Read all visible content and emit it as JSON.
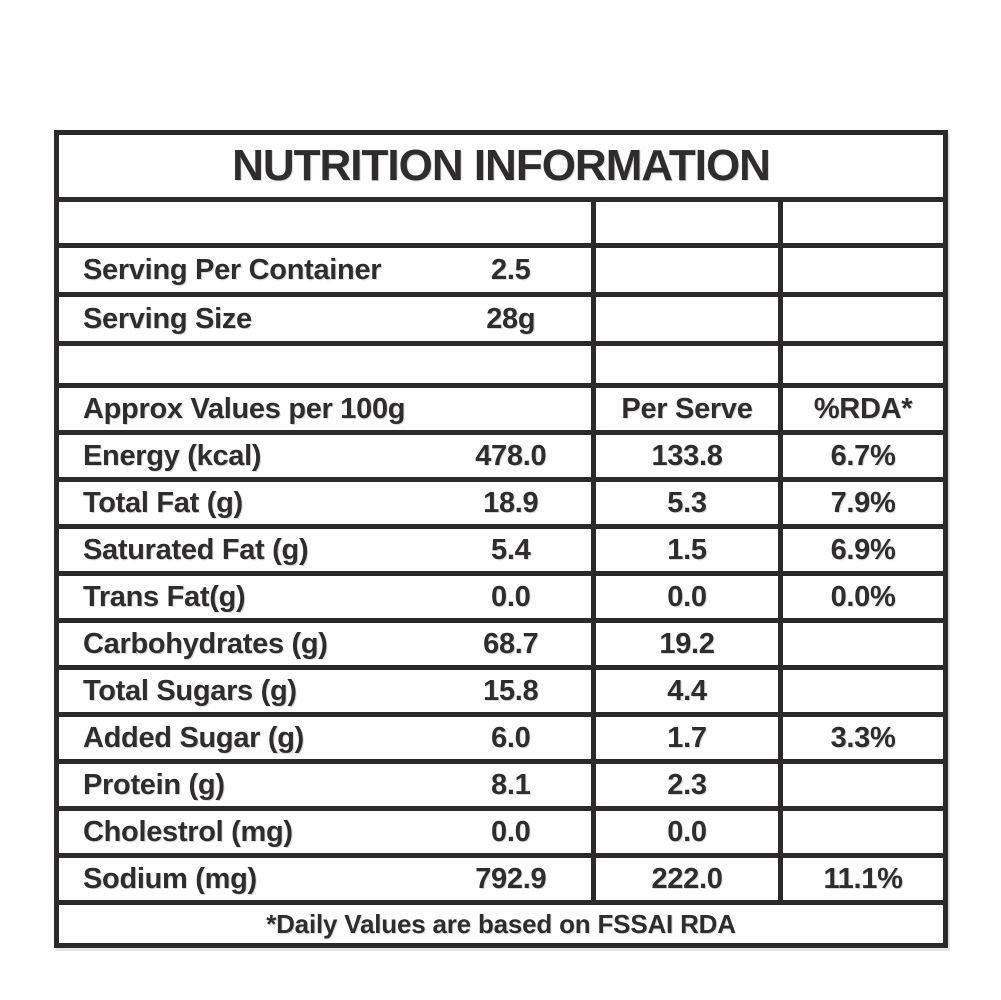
{
  "title": "NUTRITION INFORMATION",
  "serving": {
    "per_container": {
      "label": "Serving Per Container",
      "value": "2.5"
    },
    "size": {
      "label": "Serving Size",
      "value": "28g"
    }
  },
  "column_headers": {
    "main": "Approx Values per 100g",
    "per_serve": "Per Serve",
    "rda": "%RDA*"
  },
  "nutrients": [
    {
      "label": "Energy (kcal)",
      "per_100g": "478.0",
      "per_serve": "133.8",
      "rda": "6.7%"
    },
    {
      "label": "Total Fat (g)",
      "per_100g": "18.9",
      "per_serve": "5.3",
      "rda": "7.9%"
    },
    {
      "label": "Saturated Fat (g)",
      "per_100g": "5.4",
      "per_serve": "1.5",
      "rda": "6.9%"
    },
    {
      "label": "Trans Fat(g)",
      "per_100g": "0.0",
      "per_serve": "0.0",
      "rda": "0.0%"
    },
    {
      "label": "Carbohydrates (g)",
      "per_100g": "68.7",
      "per_serve": "19.2",
      "rda": ""
    },
    {
      "label": "Total Sugars (g)",
      "per_100g": "15.8",
      "per_serve": "4.4",
      "rda": ""
    },
    {
      "label": "Added Sugar (g)",
      "per_100g": "6.0",
      "per_serve": "1.7",
      "rda": "3.3%"
    },
    {
      "label": "Protein (g)",
      "per_100g": "8.1",
      "per_serve": "2.3",
      "rda": ""
    },
    {
      "label": "Cholestrol (mg)",
      "per_100g": "0.0",
      "per_serve": "0.0",
      "rda": ""
    },
    {
      "label": "Sodium (mg)",
      "per_100g": "792.9",
      "per_serve": "222.0",
      "rda": "11.1%"
    }
  ],
  "footnote": "*Daily Values are based on FSSAI RDA",
  "colors": {
    "border": "#2b292a",
    "text": "#2e2c2d",
    "background": "#ffffff"
  }
}
